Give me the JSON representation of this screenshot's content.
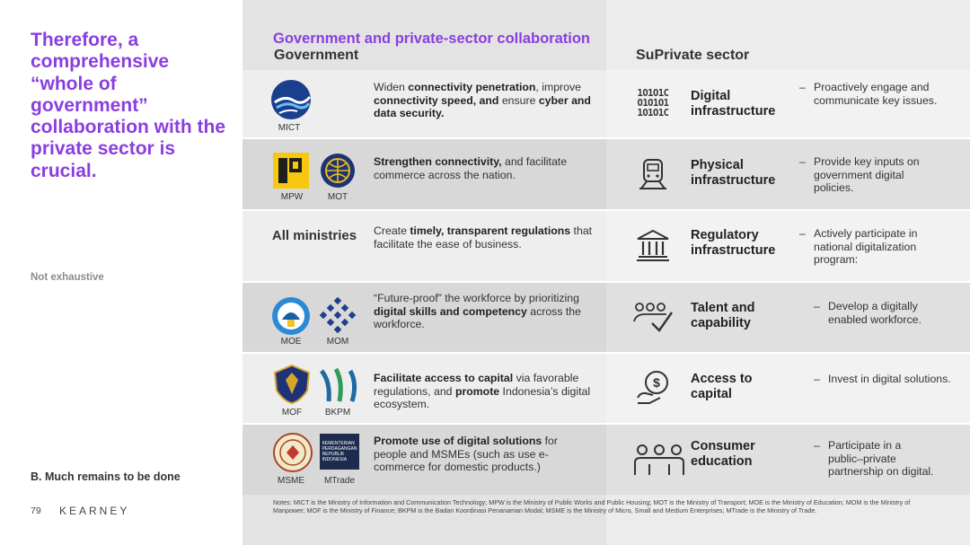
{
  "headline": "Therefore, a comprehensive “whole of government” collaboration with the private sector is crucial.",
  "not_exhaustive": "Not exhaustive",
  "section_label": "B. Much remains to be done",
  "page_number": "79",
  "brand": "KEARNEY",
  "overlay_title": "Government and private-sector collaboration",
  "government": {
    "heading": "Government",
    "rows": [
      {
        "logos": [
          {
            "label": "MICT",
            "icon": "mict-logo"
          }
        ],
        "text": [
          {
            "t": "Widen ",
            "b": false
          },
          {
            "t": "connectivity penetration",
            "b": true
          },
          {
            "t": ", improve ",
            "b": false
          },
          {
            "t": "connectivity speed, and",
            "b": true
          },
          {
            "t": " ensure ",
            "b": false
          },
          {
            "t": "cyber and data security.",
            "b": true
          }
        ]
      },
      {
        "logos": [
          {
            "label": "MPW",
            "icon": "mpw-logo"
          },
          {
            "label": "MOT",
            "icon": "mot-logo"
          }
        ],
        "text": [
          {
            "t": "Strengthen connectivity,",
            "b": true
          },
          {
            "t": " and facilitate commerce across the nation.",
            "b": false
          }
        ]
      },
      {
        "ministries_label": "All ministries",
        "text": [
          {
            "t": "Create ",
            "b": false
          },
          {
            "t": "timely, transparent regulations",
            "b": true
          },
          {
            "t": " that facilitate the ease of business.",
            "b": false
          }
        ]
      },
      {
        "logos": [
          {
            "label": "MOE",
            "icon": "moe-logo"
          },
          {
            "label": "MOM",
            "icon": "mom-logo"
          }
        ],
        "text": [
          {
            "t": "“Future-proof” the workforce by prioritizing ",
            "b": false
          },
          {
            "t": "digital skills and competency",
            "b": true
          },
          {
            "t": " across the workforce.",
            "b": false
          }
        ]
      },
      {
        "logos": [
          {
            "label": "MOF",
            "icon": "mof-logo"
          },
          {
            "label": "BKPM",
            "icon": "bkpm-logo"
          }
        ],
        "text": [
          {
            "t": "Facilitate access to capital",
            "b": true
          },
          {
            "t": " via favorable regulations, and ",
            "b": false
          },
          {
            "t": "promote",
            "b": true
          },
          {
            "t": " Indonesia’s digital ecosystem.",
            "b": false
          }
        ]
      },
      {
        "logos": [
          {
            "label": "MSME",
            "icon": "msme-logo"
          },
          {
            "label": "MTrade",
            "icon": "mtrade-logo"
          }
        ],
        "text": [
          {
            "t": "Promote use of digital solutions",
            "b": true
          },
          {
            "t": " for people and MSMEs (such as use e-commerce for domestic products.)",
            "b": false
          }
        ]
      }
    ]
  },
  "private": {
    "heading": "SuPrivate sector",
    "rows": [
      {
        "icon": "binary-icon",
        "label": "Digital infrastructure",
        "dash": "–",
        "text": "Proactively engage and communicate key issues."
      },
      {
        "icon": "train-icon",
        "label": "Physical infrastructure",
        "dash": "–",
        "text": "Provide key inputs on government digital policies."
      },
      {
        "icon": "building-icon",
        "label": "Regulatory infrastructure",
        "dash": "–",
        "text": "Actively participate in national digitalization program:"
      },
      {
        "icon": "talent-icon",
        "label": "Talent and capability",
        "dash": "–",
        "text": "Develop a digitally enabled workforce."
      },
      {
        "icon": "money-icon",
        "label": "Access to capital",
        "dash": "–",
        "text": "Invest in digital solutions."
      },
      {
        "icon": "people-icon",
        "label": "Consumer education",
        "dash": "–",
        "text": "Participate in a public–private partnership on digital."
      }
    ]
  },
  "binary_glyphs": [
    "1O1O1C",
    "O1O1O1",
    "1O1O1C"
  ],
  "logo_glyphs": {
    "mtrade": "KEMENTERIAN PERDAGANGAN REPUBLIK INDONESIA",
    "money": "$"
  },
  "notes": "Notes: MICT is the Ministry of Information and Communication Technology; MPW is the Ministry of Public Works and Public Housing; MOT is the Ministry of Transport; MOE is the Ministry of Education; MOM is the Ministry of Manpower; MOF is the Ministry of Finance; BKPM is the Badan Koordinasi Penanaman Modal; MSME is the Ministry of Micro, Small and Medium Enterprises; MTrade is the Ministry of Trade.",
  "colors": {
    "accent": "#8a3ee0",
    "gov_panel": "#e3e3e3",
    "private_panel": "#ececec"
  }
}
